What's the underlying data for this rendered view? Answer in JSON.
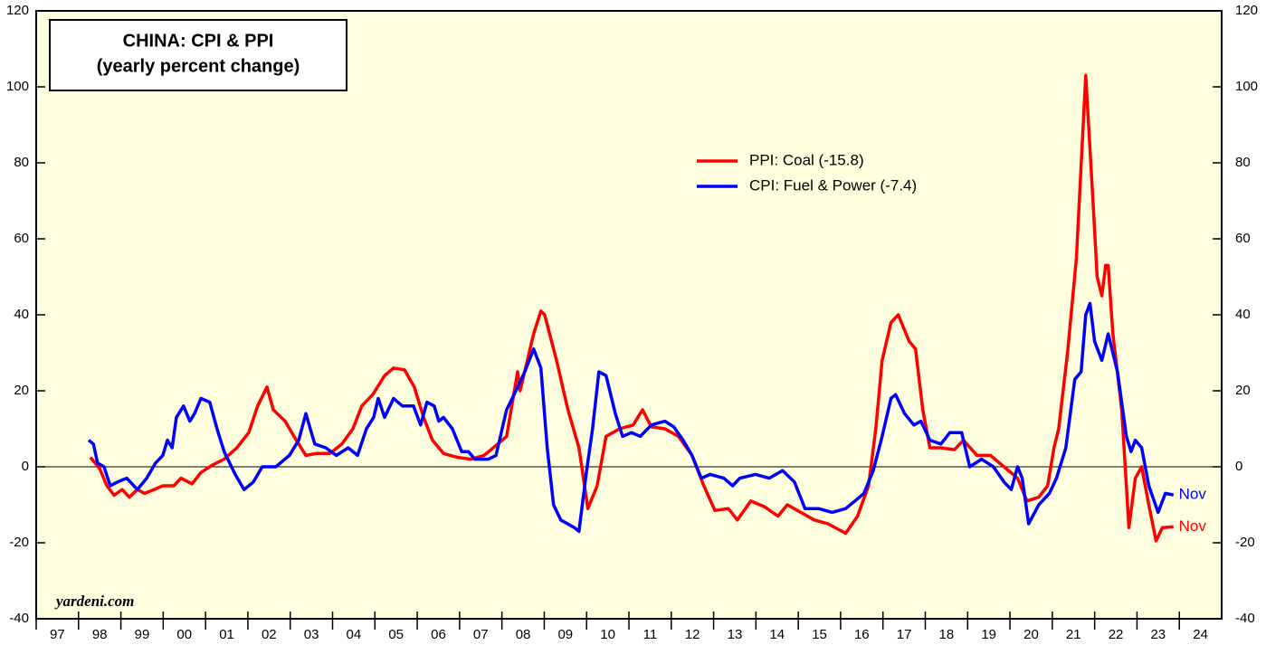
{
  "chart_data": {
    "type": "line",
    "title": [
      "CHINA: CPI & PPI",
      "(yearly percent change)"
    ],
    "source": "yardeni.com",
    "annotations": [
      "Nov",
      "Nov"
    ],
    "xlim": [
      1997,
      2025
    ],
    "xticks": [
      {
        "value": 1997,
        "label": "97"
      },
      {
        "value": 1998,
        "label": "98"
      },
      {
        "value": 1999,
        "label": "99"
      },
      {
        "value": 2000,
        "label": "00"
      },
      {
        "value": 2001,
        "label": "01"
      },
      {
        "value": 2002,
        "label": "02"
      },
      {
        "value": 2003,
        "label": "03"
      },
      {
        "value": 2004,
        "label": "04"
      },
      {
        "value": 2005,
        "label": "05"
      },
      {
        "value": 2006,
        "label": "06"
      },
      {
        "value": 2007,
        "label": "07"
      },
      {
        "value": 2008,
        "label": "08"
      },
      {
        "value": 2009,
        "label": "09"
      },
      {
        "value": 2010,
        "label": "10"
      },
      {
        "value": 2011,
        "label": "11"
      },
      {
        "value": 2012,
        "label": "12"
      },
      {
        "value": 2013,
        "label": "13"
      },
      {
        "value": 2014,
        "label": "14"
      },
      {
        "value": 2015,
        "label": "15"
      },
      {
        "value": 2016,
        "label": "16"
      },
      {
        "value": 2017,
        "label": "17"
      },
      {
        "value": 2018,
        "label": "18"
      },
      {
        "value": 2019,
        "label": "19"
      },
      {
        "value": 2020,
        "label": "20"
      },
      {
        "value": 2021,
        "label": "21"
      },
      {
        "value": 2022,
        "label": "22"
      },
      {
        "value": 2023,
        "label": "23"
      },
      {
        "value": 2024,
        "label": "24"
      }
    ],
    "ylim": [
      -40,
      120
    ],
    "yticks": [
      -40,
      -20,
      0,
      20,
      40,
      60,
      80,
      100,
      120
    ],
    "y2lim": [
      -40,
      120
    ],
    "y2ticks": [
      -40,
      -20,
      0,
      20,
      40,
      60,
      80,
      100,
      120
    ],
    "series": [
      {
        "name": "PPI: Coal (-15.8)",
        "color": "#ff0000",
        "x": [
          1998.28,
          1998.5,
          1998.67,
          1998.84,
          1999.03,
          1999.2,
          1999.39,
          1999.56,
          1999.78,
          1999.99,
          2000.25,
          2000.42,
          2000.68,
          2000.89,
          2001.17,
          2001.44,
          2001.74,
          2002.02,
          2002.23,
          2002.45,
          2002.6,
          2002.88,
          2003.09,
          2003.37,
          2003.62,
          2003.94,
          2004.22,
          2004.48,
          2004.69,
          2004.95,
          2005.23,
          2005.44,
          2005.7,
          2005.93,
          2006.15,
          2006.36,
          2006.62,
          2006.94,
          2007.26,
          2007.58,
          2007.9,
          2008.11,
          2008.37,
          2008.43,
          2008.75,
          2008.92,
          2009.01,
          2009.29,
          2009.56,
          2009.82,
          2010.03,
          2010.25,
          2010.46,
          2010.78,
          2011.1,
          2011.32,
          2011.53,
          2011.85,
          2012.17,
          2012.49,
          2012.77,
          2013.03,
          2013.35,
          2013.56,
          2013.88,
          2014.2,
          2014.52,
          2014.74,
          2015.06,
          2015.38,
          2015.7,
          2016.12,
          2016.4,
          2016.66,
          2016.83,
          2016.98,
          2017.19,
          2017.36,
          2017.62,
          2017.77,
          2017.94,
          2018.11,
          2018.37,
          2018.69,
          2018.9,
          2019.22,
          2019.54,
          2019.86,
          2020.18,
          2020.4,
          2020.68,
          2020.89,
          2021.04,
          2021.15,
          2021.36,
          2021.57,
          2021.79,
          2021.96,
          2022.06,
          2022.17,
          2022.26,
          2022.32,
          2022.43,
          2022.64,
          2022.81,
          2022.96,
          2023.11,
          2023.28,
          2023.45,
          2023.6,
          2023.86
        ],
        "values": [
          2.5,
          -0.5,
          -5,
          -7.5,
          -6,
          -8,
          -6,
          -7,
          -6,
          -5,
          -5,
          -3,
          -4.5,
          -1.5,
          0.5,
          2,
          5,
          9,
          16,
          21,
          15,
          12,
          8,
          3,
          3.5,
          3.5,
          6,
          10,
          16,
          19,
          24,
          26,
          25.5,
          21,
          13,
          7,
          3.5,
          2.5,
          2,
          3,
          6,
          8,
          25,
          20,
          35,
          41,
          40,
          28,
          15,
          5,
          -11,
          -5,
          8,
          10,
          11,
          15,
          10.5,
          10,
          8,
          3,
          -5,
          -11.5,
          -11,
          -14,
          -9,
          -10.5,
          -13,
          -10,
          -12,
          -14,
          -15,
          -17.5,
          -13,
          -5,
          10,
          28,
          38,
          40,
          33,
          31,
          15,
          5,
          5,
          4.5,
          7,
          3,
          3,
          0,
          -3,
          -9,
          -8,
          -5,
          5,
          10,
          30,
          55,
          103,
          70,
          50,
          45,
          53,
          53,
          35,
          15,
          -16,
          -3,
          0,
          -10,
          -19.5,
          -16,
          -15.8
        ]
      },
      {
        "name": "CPI: Fuel & Power (-7.4)",
        "color": "#0000ff",
        "x": [
          1998.24,
          1998.35,
          1998.45,
          1998.6,
          1998.75,
          1998.92,
          1999.14,
          1999.39,
          1999.61,
          1999.82,
          1999.99,
          2000.1,
          2000.21,
          2000.31,
          2000.48,
          2000.63,
          2000.74,
          2000.89,
          2001.1,
          2001.27,
          2001.44,
          2001.7,
          2001.91,
          2002.13,
          2002.34,
          2002.66,
          2002.98,
          2003.2,
          2003.37,
          2003.58,
          2003.84,
          2004.09,
          2004.37,
          2004.59,
          2004.8,
          2004.97,
          2005.08,
          2005.23,
          2005.44,
          2005.65,
          2005.91,
          2006.08,
          2006.23,
          2006.4,
          2006.51,
          2006.62,
          2006.83,
          2007.05,
          2007.21,
          2007.36,
          2007.68,
          2007.86,
          2008.11,
          2008.33,
          2008.54,
          2008.75,
          2008.92,
          2009.07,
          2009.22,
          2009.39,
          2009.71,
          2009.82,
          2009.99,
          2010.14,
          2010.29,
          2010.46,
          2010.68,
          2010.85,
          2011.06,
          2011.27,
          2011.53,
          2011.85,
          2012.06,
          2012.28,
          2012.49,
          2012.71,
          2012.92,
          2013.24,
          2013.45,
          2013.62,
          2013.99,
          2014.31,
          2014.63,
          2014.91,
          2015.16,
          2015.48,
          2015.8,
          2016.12,
          2016.34,
          2016.55,
          2016.77,
          2016.98,
          2017.19,
          2017.3,
          2017.51,
          2017.73,
          2017.9,
          2018.11,
          2018.37,
          2018.58,
          2018.86,
          2019.05,
          2019.33,
          2019.61,
          2019.86,
          2020.03,
          2020.18,
          2020.29,
          2020.44,
          2020.68,
          2020.93,
          2021.1,
          2021.32,
          2021.53,
          2021.68,
          2021.79,
          2021.89,
          2022.0,
          2022.17,
          2022.32,
          2022.54,
          2022.75,
          2022.86,
          2022.96,
          2023.11,
          2023.28,
          2023.5,
          2023.67,
          2023.86
        ],
        "values": [
          7,
          6,
          1,
          0,
          -5,
          -4,
          -3,
          -6,
          -3,
          1,
          3,
          7,
          5,
          13,
          16,
          12,
          14,
          18,
          17,
          10,
          4,
          -2,
          -6,
          -4,
          0,
          0,
          3,
          7,
          14,
          6,
          5,
          3,
          5,
          3,
          10,
          13,
          18,
          13,
          18,
          16,
          16,
          11,
          17,
          16,
          12,
          13,
          10,
          4,
          4,
          2,
          2,
          3,
          15,
          20,
          25,
          31,
          26,
          5,
          -10,
          -14,
          -16,
          -17,
          -2,
          10,
          25,
          24,
          14,
          8,
          9,
          8,
          11,
          12,
          10.5,
          7,
          3,
          -3,
          -2,
          -3,
          -5,
          -3,
          -2,
          -3,
          -1,
          -4,
          -11,
          -11,
          -12,
          -11,
          -9,
          -7,
          -1,
          8,
          18,
          19,
          14,
          11,
          12,
          7,
          6,
          9,
          9,
          0,
          2,
          0,
          -4,
          -6,
          0,
          -3,
          -15,
          -10,
          -7,
          -3,
          5,
          23,
          25,
          40,
          43,
          33,
          28,
          35,
          25,
          8,
          4,
          7,
          5,
          -5,
          -12,
          -7,
          -7.4
        ]
      }
    ]
  }
}
